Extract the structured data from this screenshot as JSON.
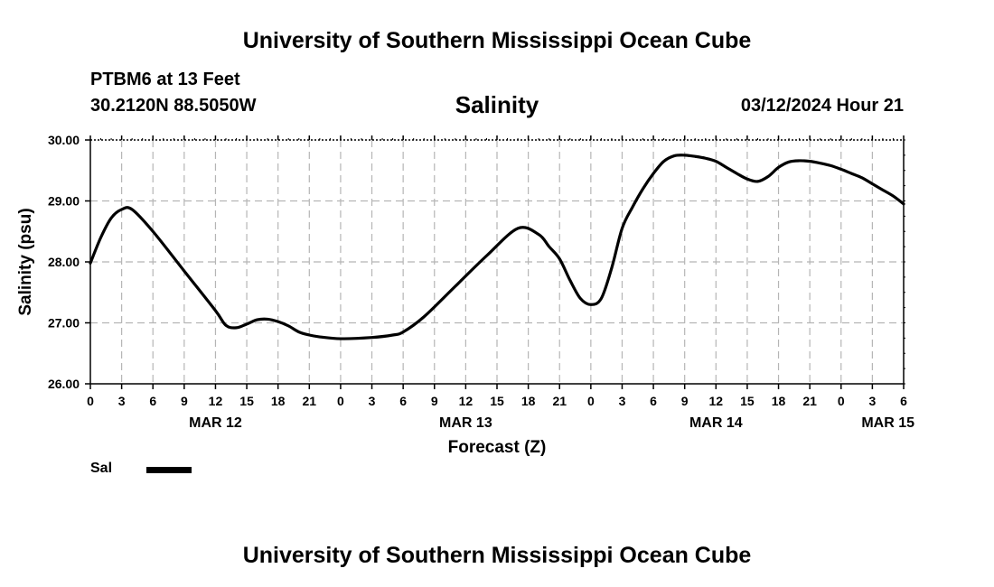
{
  "header": {
    "title": "University of Southern Mississippi Ocean Cube",
    "station": "PTBM6 at 13 Feet",
    "coordinates": "30.2120N  88.5050W",
    "chart_title": "Salinity",
    "datetime": "03/12/2024 Hour 21"
  },
  "footer": {
    "title": "University of Southern Mississippi Ocean Cube"
  },
  "legend": {
    "label": "Sal",
    "color": "#000000"
  },
  "chart_data": {
    "type": "line",
    "title": "Salinity",
    "xlabel": "Forecast (Z)",
    "ylabel": "Salinity (psu)",
    "ylim": [
      26,
      30
    ],
    "yticks": [
      26,
      27,
      28,
      29,
      30
    ],
    "ytick_labels": [
      "26.00",
      "27.00",
      "28.00",
      "29.00",
      "30.00"
    ],
    "xlim": [
      0,
      78
    ],
    "x_units": "hours since MAR 12 00Z",
    "xtick_labels": [
      "0",
      "3",
      "6",
      "9",
      "12",
      "15",
      "18",
      "21",
      "0",
      "3",
      "6",
      "9",
      "12",
      "15",
      "18",
      "21",
      "0",
      "3",
      "6",
      "9",
      "12",
      "15",
      "18",
      "21",
      "0",
      "3",
      "6"
    ],
    "date_labels": [
      {
        "label": "MAR 12",
        "hour": 12
      },
      {
        "label": "MAR 13",
        "hour": 36
      },
      {
        "label": "MAR 14",
        "hour": 60
      },
      {
        "label": "MAR 15",
        "hour": 76.5
      }
    ],
    "grid": true,
    "series": [
      {
        "name": "Sal",
        "x": [
          0,
          1,
          2,
          3,
          4,
          6,
          9,
          12,
          13,
          14,
          15,
          16,
          17,
          18,
          19,
          20,
          21,
          22,
          24,
          27,
          29,
          30,
          32,
          35,
          38,
          41,
          43,
          44,
          45,
          46,
          47,
          48,
          49,
          50,
          51,
          52,
          53,
          54,
          55,
          56,
          57,
          58,
          59,
          60,
          61,
          62,
          63,
          64,
          65,
          66,
          67,
          68,
          69,
          70,
          71,
          72,
          73,
          74,
          75,
          76,
          77,
          78
        ],
        "values": [
          27.98,
          28.4,
          28.72,
          28.86,
          28.86,
          28.5,
          27.85,
          27.2,
          26.96,
          26.92,
          26.98,
          27.05,
          27.06,
          27.02,
          26.95,
          26.85,
          26.8,
          26.77,
          26.74,
          26.76,
          26.8,
          26.85,
          27.1,
          27.6,
          28.1,
          28.55,
          28.45,
          28.25,
          28.05,
          27.7,
          27.4,
          27.3,
          27.4,
          27.9,
          28.55,
          28.9,
          29.2,
          29.45,
          29.65,
          29.74,
          29.75,
          29.73,
          29.7,
          29.65,
          29.55,
          29.45,
          29.36,
          29.32,
          29.4,
          29.55,
          29.64,
          29.66,
          29.65,
          29.62,
          29.58,
          29.52,
          29.45,
          29.38,
          29.28,
          29.18,
          29.08,
          28.95
        ]
      }
    ]
  }
}
